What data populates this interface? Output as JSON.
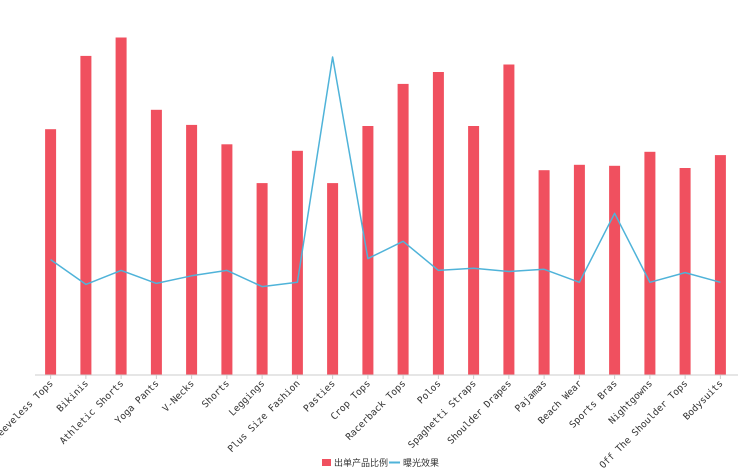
{
  "chart_data": {
    "type": "bar",
    "title": "",
    "xlabel": "",
    "ylabel": "",
    "categories": [
      "Sleeveless Tops",
      "Bikinis",
      "Athletic Shorts",
      "Yoga Pants",
      "V-Necks",
      "Shorts",
      "Leggings",
      "Plus Size Fashion",
      "Pasties",
      "Crop Tops",
      "Racerback Tops",
      "Polos",
      "Spaghetti Straps",
      "Shoulder Drapes",
      "Pajamas",
      "Beach Wear",
      "Sports Bras",
      "Nightgowns",
      "Off The Shoulder Tops",
      "Bodysuits"
    ],
    "series": [
      {
        "name": "出单产品比例",
        "type": "bar",
        "color": "#f0505f",
        "values": [
          228,
          296,
          313,
          246,
          232,
          214,
          178,
          208,
          178,
          231,
          270,
          281,
          231,
          288,
          190,
          195,
          194,
          207,
          192,
          204
        ]
      },
      {
        "name": "曝光效果",
        "type": "line",
        "color": "#4fb3d9",
        "values": [
          107,
          84,
          97,
          85,
          92,
          97,
          82,
          86,
          295,
          108,
          124,
          97,
          99,
          96,
          98,
          86,
          150,
          86,
          95,
          86
        ]
      }
    ],
    "ylim": [
      0,
      320
    ],
    "grid": false,
    "legend_position": "bottom"
  }
}
